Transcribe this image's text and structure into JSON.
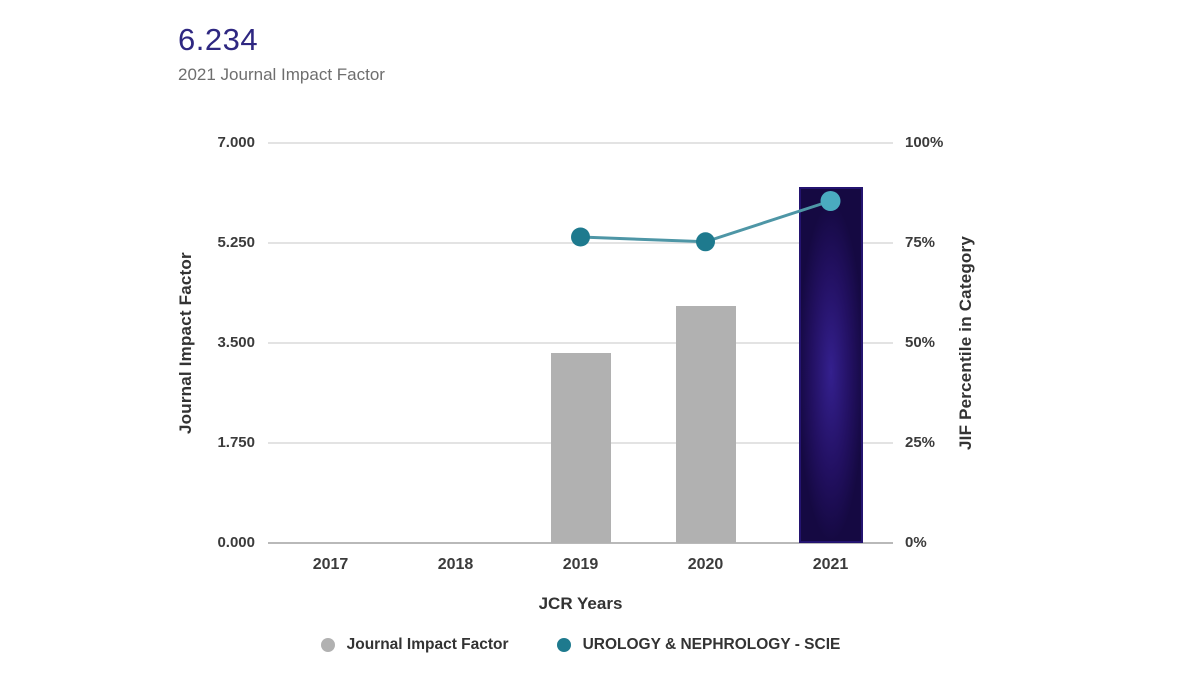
{
  "header": {
    "value": "6.234",
    "value_color": "#2e2781",
    "caption": "2021 Journal Impact Factor"
  },
  "chart_data": {
    "type": "combo-bar-line",
    "x": {
      "title": "JCR Years",
      "categories": [
        "2017",
        "2018",
        "2019",
        "2020",
        "2021"
      ]
    },
    "left_axis": {
      "title": "Journal Impact Factor",
      "min": 0,
      "max": 7,
      "ticks": [
        {
          "v": 0.0,
          "label": "0.000"
        },
        {
          "v": 1.75,
          "label": "1.750"
        },
        {
          "v": 3.5,
          "label": "3.500"
        },
        {
          "v": 5.25,
          "label": "5.250"
        },
        {
          "v": 7.0,
          "label": "7.000"
        }
      ]
    },
    "right_axis": {
      "title": "JIF Percentile in Category",
      "min": 0,
      "max": 100,
      "ticks": [
        {
          "v": 0,
          "label": "0%"
        },
        {
          "v": 25,
          "label": "25%"
        },
        {
          "v": 50,
          "label": "50%"
        },
        {
          "v": 75,
          "label": "75%"
        },
        {
          "v": 100,
          "label": "100%"
        }
      ]
    },
    "grid": {
      "show": true,
      "gridline_color": "#e3e3e3",
      "baseline_color": "#b9b9b9"
    },
    "highlight_category": "2021",
    "series": [
      {
        "name": "Journal Impact Factor",
        "type": "bar",
        "axis": "left",
        "color": "#b1b1b1",
        "highlight_gradient": [
          "#34208e",
          "#221061",
          "#150942"
        ],
        "highlight_border": "#241470",
        "values": [
          null,
          null,
          3.33,
          4.15,
          6.234
        ]
      },
      {
        "name": "UROLOGY & NEPHROLOGY - SCIE",
        "type": "line",
        "axis": "right",
        "color": "#4e96a6",
        "marker_color": "#1e7a8e",
        "marker_highlight_color": "#4aabc0",
        "values": [
          null,
          null,
          76.5,
          75.3,
          85.5
        ]
      }
    ],
    "legend_position": "bottom"
  },
  "legend": {
    "items": [
      {
        "label": "Journal Impact Factor",
        "color": "#b1b1b1"
      },
      {
        "label": "UROLOGY & NEPHROLOGY - SCIE",
        "color": "#1e7a8e"
      }
    ]
  }
}
